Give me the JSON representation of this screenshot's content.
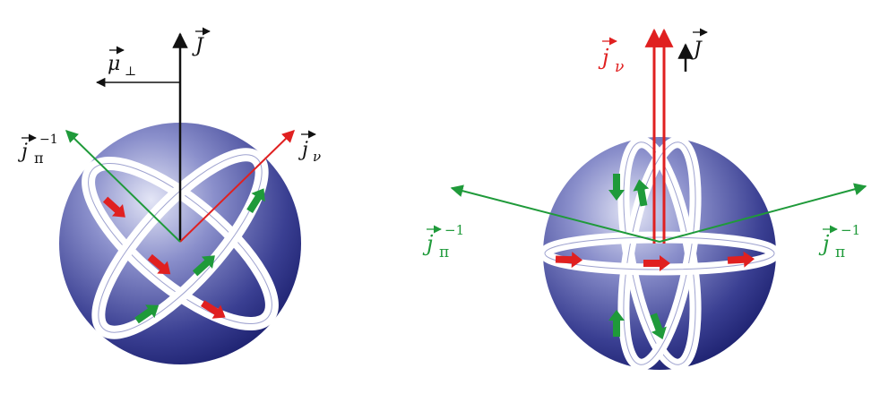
{
  "colors": {
    "sphere_light": "#d9dcf2",
    "sphere_mid": "#5a5fae",
    "sphere_dark": "#1e2275",
    "ring": "#ffffff",
    "arrow_red": "#e02020",
    "arrow_green": "#1f9a3a",
    "vector_black": "#111111"
  },
  "left_panel": {
    "J_label": "J",
    "mu_label": "μ",
    "mu_sub": "⊥",
    "jnu_label": "j",
    "jnu_sub": "ν",
    "jpi_label": "j",
    "jpi_sub": "π",
    "jpi_sup": "−1"
  },
  "right_panel": {
    "J_label": "J",
    "jnu_label": "j",
    "jnu_sub": "ν",
    "jpi_left_label": "j",
    "jpi_left_sub": "π",
    "jpi_left_sup": "−1",
    "jpi_right_label": "j",
    "jpi_right_sub": "π",
    "jpi_right_sup": "−1"
  }
}
